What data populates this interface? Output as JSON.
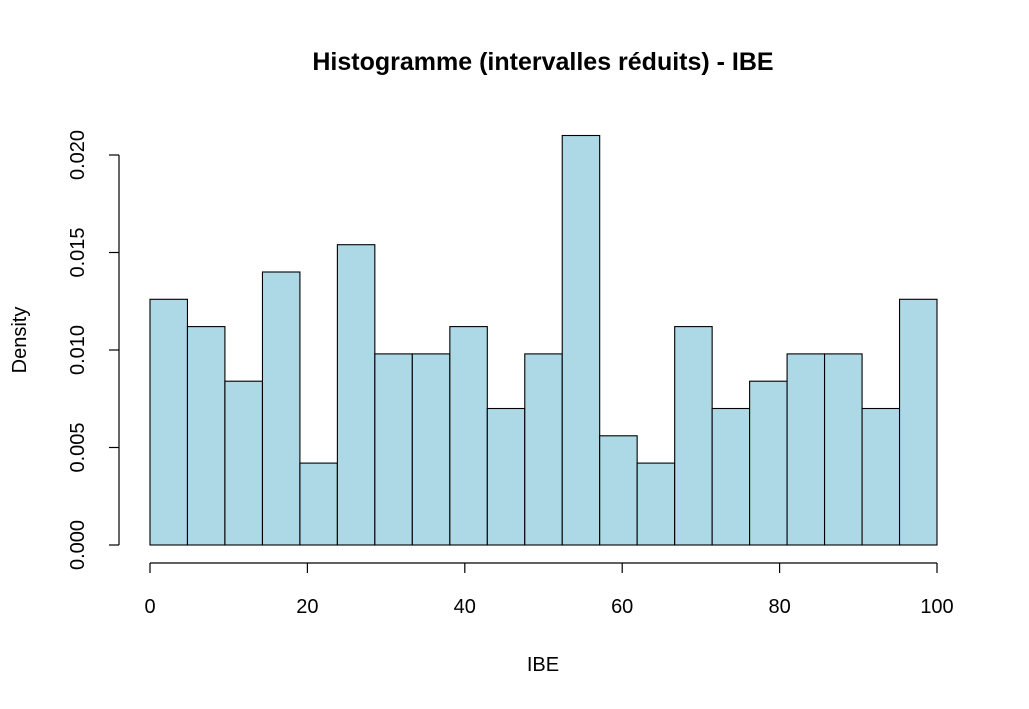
{
  "chart_data": {
    "type": "bar",
    "title": "Histogramme (intervalles réduits) - IBE",
    "xlabel": "IBE",
    "ylabel": "Density",
    "bin_edges": [
      0,
      4.76,
      9.52,
      14.29,
      19.05,
      23.81,
      28.57,
      33.33,
      38.1,
      42.86,
      47.62,
      52.38,
      57.14,
      61.9,
      66.67,
      71.43,
      76.19,
      80.95,
      85.71,
      90.48,
      95.24,
      100
    ],
    "values": [
      0.0126,
      0.0112,
      0.0084,
      0.014,
      0.0042,
      0.0154,
      0.0098,
      0.0098,
      0.0112,
      0.007,
      0.0098,
      0.021,
      0.0056,
      0.0042,
      0.0112,
      0.007,
      0.0084,
      0.0098,
      0.0098,
      0.007,
      0.0126
    ],
    "xlim": [
      0,
      100
    ],
    "ylim": [
      0,
      0.021
    ],
    "x_ticks": [
      0,
      20,
      40,
      60,
      80,
      100
    ],
    "x_tick_labels": [
      "0",
      "20",
      "40",
      "60",
      "80",
      "100"
    ],
    "y_ticks": [
      0,
      0.005,
      0.01,
      0.015,
      0.02
    ],
    "y_tick_labels": [
      "0.000",
      "0.005",
      "0.010",
      "0.015",
      "0.020"
    ],
    "bar_color": "#add8e6",
    "grid": false,
    "legend": "none"
  }
}
